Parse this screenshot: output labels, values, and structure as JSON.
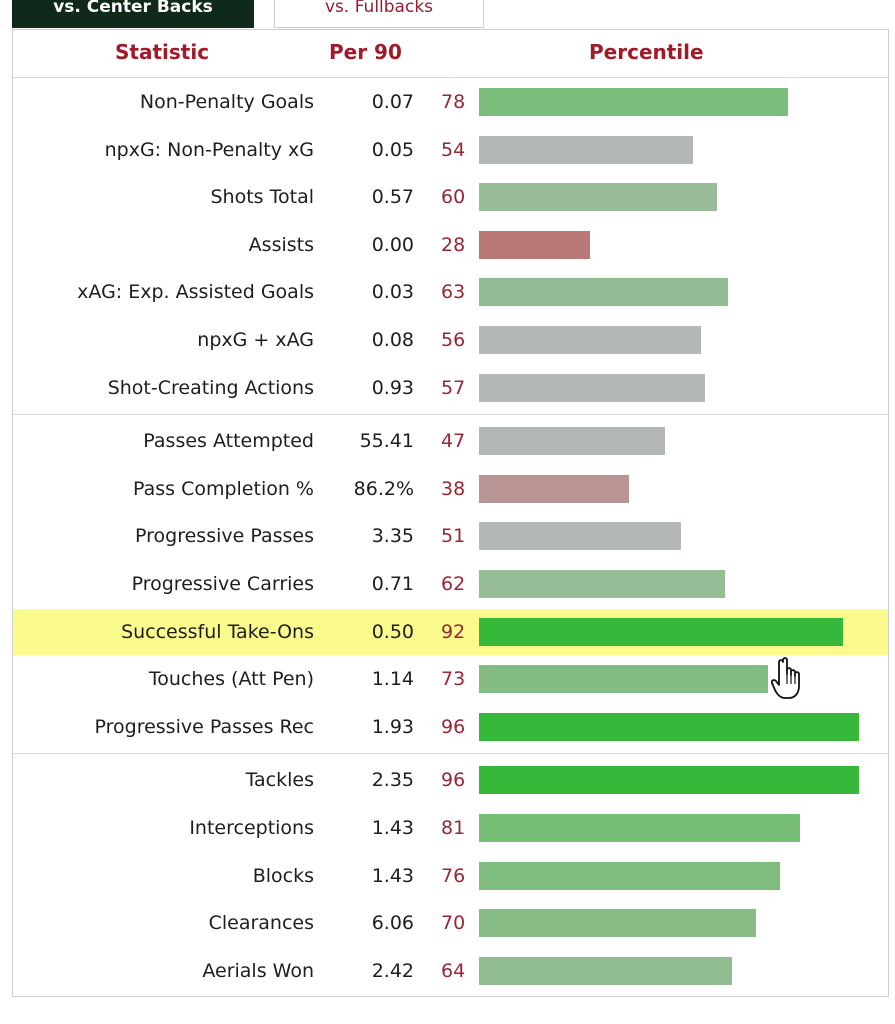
{
  "tabs": [
    {
      "label": "vs. Center Backs",
      "active": true
    },
    {
      "label": "vs. Fullbacks",
      "active": false
    }
  ],
  "header": {
    "statistic": "Statistic",
    "per90": "Per 90",
    "percentile": "Percentile"
  },
  "colors": {
    "header_text": "#a11a28",
    "percentile_text": "#9a2535",
    "highlight_row": "#fbfa8c",
    "bar_high": "#36b83a",
    "bar_mid_green": "#8dc08d",
    "bar_neutral": "#b4b8b4",
    "bar_low": "#b87878",
    "active_tab": "#0f2a1a"
  },
  "groups": [
    {
      "rows": [
        {
          "stat": "Non-Penalty Goals",
          "per90": "0.07",
          "percentile": 78
        },
        {
          "stat": "npxG: Non-Penalty xG",
          "per90": "0.05",
          "percentile": 54
        },
        {
          "stat": "Shots Total",
          "per90": "0.57",
          "percentile": 60
        },
        {
          "stat": "Assists",
          "per90": "0.00",
          "percentile": 28
        },
        {
          "stat": "xAG: Exp. Assisted Goals",
          "per90": "0.03",
          "percentile": 63
        },
        {
          "stat": "npxG + xAG",
          "per90": "0.08",
          "percentile": 56
        },
        {
          "stat": "Shot-Creating Actions",
          "per90": "0.93",
          "percentile": 57
        }
      ]
    },
    {
      "rows": [
        {
          "stat": "Passes Attempted",
          "per90": "55.41",
          "percentile": 47
        },
        {
          "stat": "Pass Completion %",
          "per90": "86.2%",
          "percentile": 38
        },
        {
          "stat": "Progressive Passes",
          "per90": "3.35",
          "percentile": 51
        },
        {
          "stat": "Progressive Carries",
          "per90": "0.71",
          "percentile": 62
        },
        {
          "stat": "Successful Take-Ons",
          "per90": "0.50",
          "percentile": 92,
          "highlighted": true
        },
        {
          "stat": "Touches (Att Pen)",
          "per90": "1.14",
          "percentile": 73
        },
        {
          "stat": "Progressive Passes Rec",
          "per90": "1.93",
          "percentile": 96
        }
      ]
    },
    {
      "rows": [
        {
          "stat": "Tackles",
          "per90": "2.35",
          "percentile": 96
        },
        {
          "stat": "Interceptions",
          "per90": "1.43",
          "percentile": 81
        },
        {
          "stat": "Blocks",
          "per90": "1.43",
          "percentile": 76
        },
        {
          "stat": "Clearances",
          "per90": "6.06",
          "percentile": 70
        },
        {
          "stat": "Aerials Won",
          "per90": "2.42",
          "percentile": 64
        }
      ]
    }
  ],
  "cursor": {
    "icon": "hand-pointer-icon"
  }
}
